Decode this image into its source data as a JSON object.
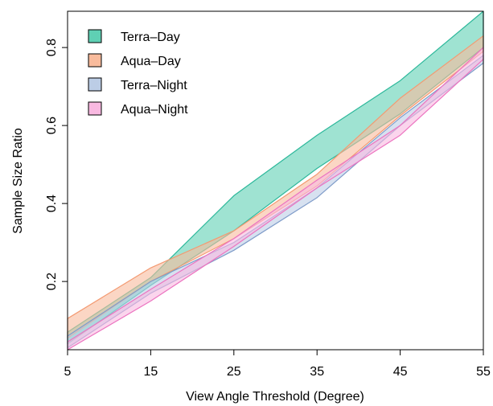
{
  "chart_data": {
    "type": "band",
    "xlabel": "View Angle Threshold (Degree)",
    "ylabel": "Sample Size Ratio",
    "x": [
      5,
      15,
      25,
      35,
      45,
      55
    ],
    "xlim": [
      5,
      55
    ],
    "xticks": [
      5,
      15,
      25,
      35,
      45,
      55
    ],
    "ylim": [
      0.025,
      0.893
    ],
    "yticks": [
      0.2,
      0.4,
      0.6,
      0.8
    ],
    "legend": "top-left",
    "series": [
      {
        "name": "Terra–Day",
        "color": "#2db89b",
        "fill": "#5fd0b4",
        "lower": [
          0.04,
          0.19,
          0.33,
          0.49,
          0.63,
          0.8
        ],
        "upper": [
          0.07,
          0.21,
          0.42,
          0.575,
          0.715,
          0.893
        ]
      },
      {
        "name": "Aqua–Day",
        "color": "#f39a72",
        "fill": "#f9bb9c",
        "lower": [
          0.055,
          0.2,
          0.31,
          0.445,
          0.625,
          0.79
        ],
        "upper": [
          0.105,
          0.235,
          0.33,
          0.475,
          0.67,
          0.83
        ]
      },
      {
        "name": "Terra–Night",
        "color": "#7f9cc9",
        "fill": "#bccde6",
        "lower": [
          0.03,
          0.17,
          0.28,
          0.415,
          0.6,
          0.76
        ],
        "upper": [
          0.06,
          0.2,
          0.3,
          0.44,
          0.62,
          0.78
        ]
      },
      {
        "name": "Aqua–Night",
        "color": "#ec74c0",
        "fill": "#f9b9e1",
        "lower": [
          0.025,
          0.15,
          0.29,
          0.44,
          0.575,
          0.77
        ],
        "upper": [
          0.045,
          0.18,
          0.31,
          0.46,
          0.6,
          0.8
        ]
      }
    ]
  }
}
